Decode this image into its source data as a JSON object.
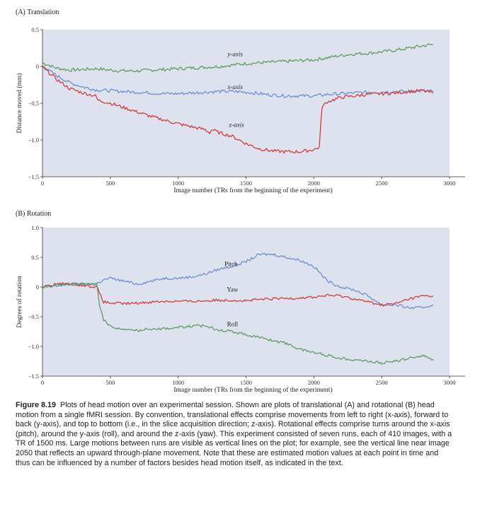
{
  "chart_data": [
    {
      "type": "line",
      "panel_title": "(A) Translation",
      "xlabel": "Image number (TRs from the beginning of the experiment)",
      "ylabel": "Distance moved (mm)",
      "xlim": [
        0,
        3000
      ],
      "ylim": [
        -1.5,
        0.5
      ],
      "xticks": [
        0,
        500,
        1000,
        1500,
        2000,
        2500,
        3000
      ],
      "yticks": [
        0.5,
        0,
        -0.5,
        -1.0,
        -1.5
      ],
      "ytick_labels": [
        "0.5",
        "0",
        "−0.5",
        "−1.0",
        "−1.5"
      ],
      "grid": false,
      "background": "#dde2ee",
      "series": [
        {
          "name": "y-axis",
          "color": "#5f9b63",
          "label_at": [
            1420,
            0.14
          ],
          "x": [
            0,
            100,
            200,
            300,
            400,
            500,
            600,
            700,
            800,
            900,
            1000,
            1100,
            1200,
            1300,
            1400,
            1500,
            1600,
            1700,
            1800,
            1900,
            2000,
            2100,
            2200,
            2300,
            2400,
            2500,
            2600,
            2700,
            2800,
            2880
          ],
          "y": [
            0.05,
            -0.02,
            -0.05,
            -0.04,
            -0.03,
            -0.05,
            -0.06,
            -0.06,
            -0.05,
            -0.04,
            -0.03,
            -0.02,
            -0.01,
            0.0,
            0.02,
            0.04,
            0.05,
            0.06,
            0.07,
            0.08,
            0.09,
            0.12,
            0.15,
            0.17,
            0.18,
            0.2,
            0.22,
            0.25,
            0.28,
            0.3
          ]
        },
        {
          "name": "x-axis",
          "color": "#6f8fce",
          "label_at": [
            1420,
            -0.31
          ],
          "x": [
            0,
            100,
            200,
            300,
            400,
            500,
            600,
            700,
            800,
            900,
            1000,
            1100,
            1200,
            1300,
            1400,
            1500,
            1600,
            1700,
            1800,
            1900,
            2000,
            2050,
            2100,
            2200,
            2300,
            2400,
            2500,
            2600,
            2700,
            2800,
            2880
          ],
          "y": [
            0.0,
            -0.12,
            -0.22,
            -0.28,
            -0.32,
            -0.33,
            -0.34,
            -0.35,
            -0.36,
            -0.37,
            -0.37,
            -0.36,
            -0.35,
            -0.34,
            -0.34,
            -0.35,
            -0.37,
            -0.39,
            -0.4,
            -0.4,
            -0.4,
            -0.39,
            -0.38,
            -0.37,
            -0.36,
            -0.35,
            -0.35,
            -0.34,
            -0.34,
            -0.33,
            -0.34
          ]
        },
        {
          "name": "z-axis",
          "color": "#d63a3e",
          "label_at": [
            1430,
            -0.82
          ],
          "x": [
            0,
            100,
            200,
            300,
            390,
            410,
            500,
            600,
            700,
            800,
            900,
            1000,
            1100,
            1200,
            1230,
            1250,
            1300,
            1400,
            1500,
            1600,
            1700,
            1800,
            1900,
            2000,
            2040,
            2060,
            2100,
            2200,
            2300,
            2400,
            2500,
            2600,
            2700,
            2800,
            2880
          ],
          "y": [
            0.0,
            -0.17,
            -0.3,
            -0.36,
            -0.4,
            -0.46,
            -0.5,
            -0.56,
            -0.62,
            -0.68,
            -0.73,
            -0.78,
            -0.82,
            -0.86,
            -0.9,
            -0.86,
            -0.9,
            -0.95,
            -1.05,
            -1.12,
            -1.15,
            -1.16,
            -1.16,
            -1.13,
            -1.1,
            -0.55,
            -0.48,
            -0.42,
            -0.4,
            -0.38,
            -0.37,
            -0.36,
            -0.34,
            -0.33,
            -0.36
          ]
        }
      ]
    },
    {
      "type": "line",
      "panel_title": "(B) Rotation",
      "xlabel": "Image number (TRs from the beginning of the experiment)",
      "ylabel": "Degrees of rotation",
      "xlim": [
        0,
        3000
      ],
      "ylim": [
        -1.5,
        1.0
      ],
      "xticks": [
        0,
        500,
        1000,
        1500,
        2000,
        2500,
        3000
      ],
      "yticks": [
        1.0,
        0.5,
        0,
        -0.5,
        -1.0,
        -1.5
      ],
      "ytick_labels": [
        "1.0",
        "0.5",
        "0",
        "−0.5",
        "−1.0",
        "−1.5"
      ],
      "grid": false,
      "background": "#dde2ee",
      "series": [
        {
          "name": "Pitch",
          "color": "#6f8fce",
          "label_at": [
            1390,
            0.35
          ],
          "x": [
            0,
            100,
            200,
            300,
            400,
            450,
            500,
            600,
            700,
            800,
            900,
            1000,
            1100,
            1200,
            1300,
            1400,
            1500,
            1600,
            1700,
            1800,
            1900,
            2000,
            2100,
            2200,
            2300,
            2400,
            2500,
            2600,
            2700,
            2800,
            2880
          ],
          "y": [
            0.0,
            0.02,
            0.04,
            0.05,
            0.06,
            0.12,
            0.15,
            0.1,
            0.05,
            0.1,
            0.15,
            0.15,
            0.17,
            0.22,
            0.3,
            0.35,
            0.43,
            0.55,
            0.55,
            0.5,
            0.45,
            0.35,
            0.1,
            0.0,
            -0.05,
            -0.15,
            -0.3,
            -0.3,
            -0.35,
            -0.35,
            -0.3
          ]
        },
        {
          "name": "Yaw",
          "color": "#d63a3e",
          "label_at": [
            1400,
            -0.08
          ],
          "x": [
            0,
            100,
            200,
            300,
            400,
            450,
            500,
            600,
            700,
            800,
            900,
            1000,
            1100,
            1200,
            1300,
            1400,
            1500,
            1600,
            1700,
            1800,
            1900,
            2000,
            2100,
            2200,
            2300,
            2400,
            2500,
            2600,
            2700,
            2800,
            2880
          ],
          "y": [
            0.0,
            0.05,
            0.06,
            0.03,
            0.0,
            -0.25,
            -0.27,
            -0.28,
            -0.27,
            -0.25,
            -0.24,
            -0.24,
            -0.24,
            -0.23,
            -0.22,
            -0.22,
            -0.23,
            -0.21,
            -0.2,
            -0.19,
            -0.18,
            -0.17,
            -0.14,
            -0.15,
            -0.2,
            -0.25,
            -0.3,
            -0.28,
            -0.2,
            -0.15,
            -0.15
          ]
        },
        {
          "name": "Roll",
          "color": "#5f9b63",
          "label_at": [
            1400,
            -0.66
          ],
          "x": [
            0,
            100,
            200,
            300,
            400,
            420,
            450,
            500,
            600,
            700,
            800,
            900,
            1000,
            1100,
            1200,
            1300,
            1400,
            1500,
            1600,
            1700,
            1800,
            1900,
            2000,
            2100,
            2200,
            2300,
            2400,
            2500,
            2600,
            2700,
            2800,
            2880
          ],
          "y": [
            0.0,
            0.03,
            0.05,
            0.05,
            0.04,
            -0.3,
            -0.55,
            -0.66,
            -0.72,
            -0.73,
            -0.7,
            -0.7,
            -0.68,
            -0.66,
            -0.65,
            -0.72,
            -0.75,
            -0.8,
            -0.85,
            -0.9,
            -0.95,
            -1.05,
            -1.1,
            -1.15,
            -1.2,
            -1.22,
            -1.25,
            -1.28,
            -1.25,
            -1.2,
            -1.15,
            -1.22
          ]
        }
      ]
    }
  ],
  "caption": {
    "figure_label": "Figure 8.19",
    "text": "Plots of head motion over an experimental session. Shown are plots of translational (A) and rotational (B) head motion from a single fMRI session. By convention, translational effects comprise movements from left to right (x-axis), forward to back (y-axis), and top to bottom (i.e., in the slice acquisition direction; z-axis). Rotational effects comprise turns around the x-axis (pitch), around the y-axis (roll), and around the z-axis (yaw). This experiment consisted of seven runs, each of 410 images, with a TR of 1500 ms. Large motions between runs are visible as vertical lines on the plot; for example, see the vertical line near image 2050 that reflects an upward through-plane movement. Note that these are estimated motion values at each point in time and thus can be influenced by a number of factors besides head motion itself, as indicated in the text."
  }
}
